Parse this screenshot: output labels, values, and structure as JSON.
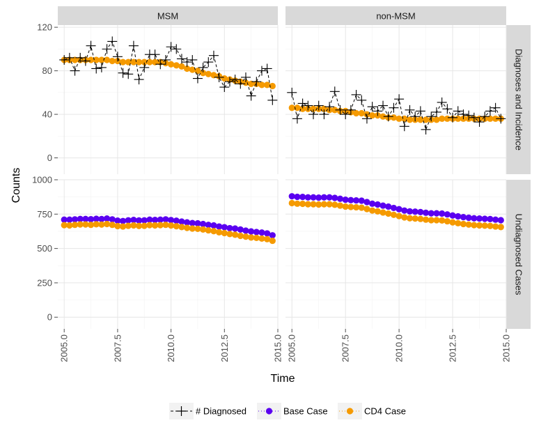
{
  "chart_data": {
    "type": "scatter",
    "title": "",
    "xlabel": "Time",
    "ylabel": "Counts",
    "colors": {
      "diagnosed": "#000000",
      "base_case": "#5a00f0",
      "cd4_case": "#f59a00",
      "strip_bg": "#d9d9d9",
      "grid_major": "#e6e6e6",
      "grid_minor": "#f3f3f3"
    },
    "columns": [
      "MSM",
      "non-MSM"
    ],
    "rows": [
      "Diagnoses and Incidence",
      "Undiagnosed Cases"
    ],
    "x_range": [
      2004.7,
      2015.0
    ],
    "x_ticks": [
      2005,
      2007.5,
      2010,
      2012.5,
      2015
    ],
    "x_tick_labels": [
      "2005.0",
      "2007.5",
      "2010.0",
      "2012.5",
      "2015.0"
    ],
    "y_ranges": [
      [
        -15,
        122
      ],
      [
        -85,
        1000
      ]
    ],
    "y_ticks": [
      [
        0,
        40,
        80,
        120
      ],
      [
        0,
        250,
        500,
        750,
        1000
      ]
    ],
    "y_tick_labels": [
      [
        "0",
        "40",
        "80",
        "120"
      ],
      [
        "0",
        "250",
        "500",
        "750",
        "1000"
      ]
    ],
    "x": [
      2005.0,
      2005.25,
      2005.5,
      2005.75,
      2006.0,
      2006.25,
      2006.5,
      2006.75,
      2007.0,
      2007.25,
      2007.5,
      2007.75,
      2008.0,
      2008.25,
      2008.5,
      2008.75,
      2009.0,
      2009.25,
      2009.5,
      2009.75,
      2010.0,
      2010.25,
      2010.5,
      2010.75,
      2011.0,
      2011.25,
      2011.5,
      2011.75,
      2012.0,
      2012.25,
      2012.5,
      2012.75,
      2013.0,
      2013.25,
      2013.5,
      2013.75,
      2014.0,
      2014.25,
      2014.5,
      2014.75
    ],
    "legend": {
      "position": "bottom",
      "entries": [
        {
          "key": "diagnosed",
          "label": "# Diagnosed"
        },
        {
          "key": "base_case",
          "label": "Base Case"
        },
        {
          "key": "cd4_case",
          "label": "CD4 Case"
        }
      ]
    },
    "panels": [
      {
        "column": "MSM",
        "row": "Diagnoses and Incidence",
        "series": [
          {
            "key": "diagnosed",
            "name": "# Diagnosed",
            "values": [
              90,
              92,
              80,
              92,
              89,
              103,
              82,
              83,
              100,
              107,
              93,
              78,
              77,
              103,
              72,
              83,
              95,
              95,
              86,
              90,
              102,
              100,
              91,
              88,
              90,
              73,
              83,
              88,
              94,
              74,
              65,
              70,
              72,
              68,
              74,
              57,
              70,
              80,
              82,
              53
            ]
          },
          {
            "key": "cd4_case",
            "name": "CD4 Case",
            "values": [
              90,
              90,
              90,
              90,
              90,
              90,
              90,
              90,
              90,
              89,
              89,
              88,
              88,
              88,
              88,
              88,
              88,
              88,
              88,
              87,
              86,
              85,
              84,
              82,
              81,
              80,
              78,
              77,
              76,
              75,
              73,
              72,
              71,
              70,
              69,
              68,
              68,
              67,
              67,
              66
            ]
          }
        ]
      },
      {
        "column": "non-MSM",
        "row": "Diagnoses and Incidence",
        "series": [
          {
            "key": "diagnosed",
            "name": "# Diagnosed",
            "values": [
              60,
              36,
              50,
              48,
              40,
              48,
              40,
              47,
              61,
              44,
              40,
              44,
              58,
              53,
              36,
              47,
              43,
              48,
              38,
              46,
              54,
              29,
              44,
              38,
              43,
              26,
              38,
              42,
              51,
              45,
              37,
              43,
              40,
              39,
              37,
              33,
              38,
              43,
              46,
              36
            ]
          },
          {
            "key": "cd4_case",
            "name": "CD4 Case",
            "values": [
              46,
              46,
              45,
              45,
              45,
              45,
              45,
              44,
              44,
              43,
              43,
              42,
              41,
              41,
              40,
              39,
              39,
              38,
              37,
              37,
              36,
              36,
              35,
              35,
              35,
              35,
              35,
              35,
              36,
              36,
              36,
              36,
              36,
              36,
              36,
              36,
              36,
              36,
              36,
              36
            ]
          }
        ]
      },
      {
        "column": "MSM",
        "row": "Undiagnosed Cases",
        "series": [
          {
            "key": "base_case",
            "name": "Base Case",
            "values": [
              710,
              710,
              712,
              715,
              715,
              713,
              716,
              714,
              718,
              712,
              703,
              700,
              705,
              708,
              704,
              705,
              710,
              708,
              710,
              712,
              707,
              702,
              696,
              690,
              685,
              683,
              678,
              672,
              668,
              660,
              655,
              648,
              645,
              638,
              630,
              624,
              620,
              616,
              610,
              596
            ]
          },
          {
            "key": "cd4_case",
            "name": "CD4 Case",
            "values": [
              670,
              668,
              672,
              675,
              675,
              672,
              676,
              674,
              678,
              672,
              663,
              660,
              665,
              668,
              664,
              665,
              670,
              668,
              670,
              672,
              667,
              662,
              656,
              650,
              645,
              643,
              638,
              632,
              626,
              618,
              612,
              605,
              600,
              592,
              586,
              580,
              577,
              572,
              568,
              556
            ]
          }
        ]
      },
      {
        "column": "non-MSM",
        "row": "Undiagnosed Cases",
        "series": [
          {
            "key": "base_case",
            "name": "Base Case",
            "values": [
              880,
              876,
              875,
              872,
              872,
              870,
              872,
              872,
              868,
              862,
              855,
              852,
              850,
              848,
              838,
              826,
              820,
              812,
              805,
              795,
              786,
              776,
              770,
              768,
              765,
              760,
              756,
              756,
              754,
              748,
              740,
              734,
              728,
              724,
              720,
              718,
              716,
              714,
              710,
              706
            ]
          },
          {
            "key": "cd4_case",
            "name": "CD4 Case",
            "values": [
              830,
              826,
              825,
              822,
              822,
              820,
              822,
              822,
              818,
              812,
              805,
              802,
              800,
              797,
              787,
              776,
              770,
              762,
              754,
              745,
              736,
              726,
              720,
              718,
              715,
              710,
              706,
              706,
              704,
              698,
              690,
              684,
              678,
              674,
              670,
              668,
              666,
              664,
              660,
              656
            ]
          }
        ]
      }
    ]
  }
}
